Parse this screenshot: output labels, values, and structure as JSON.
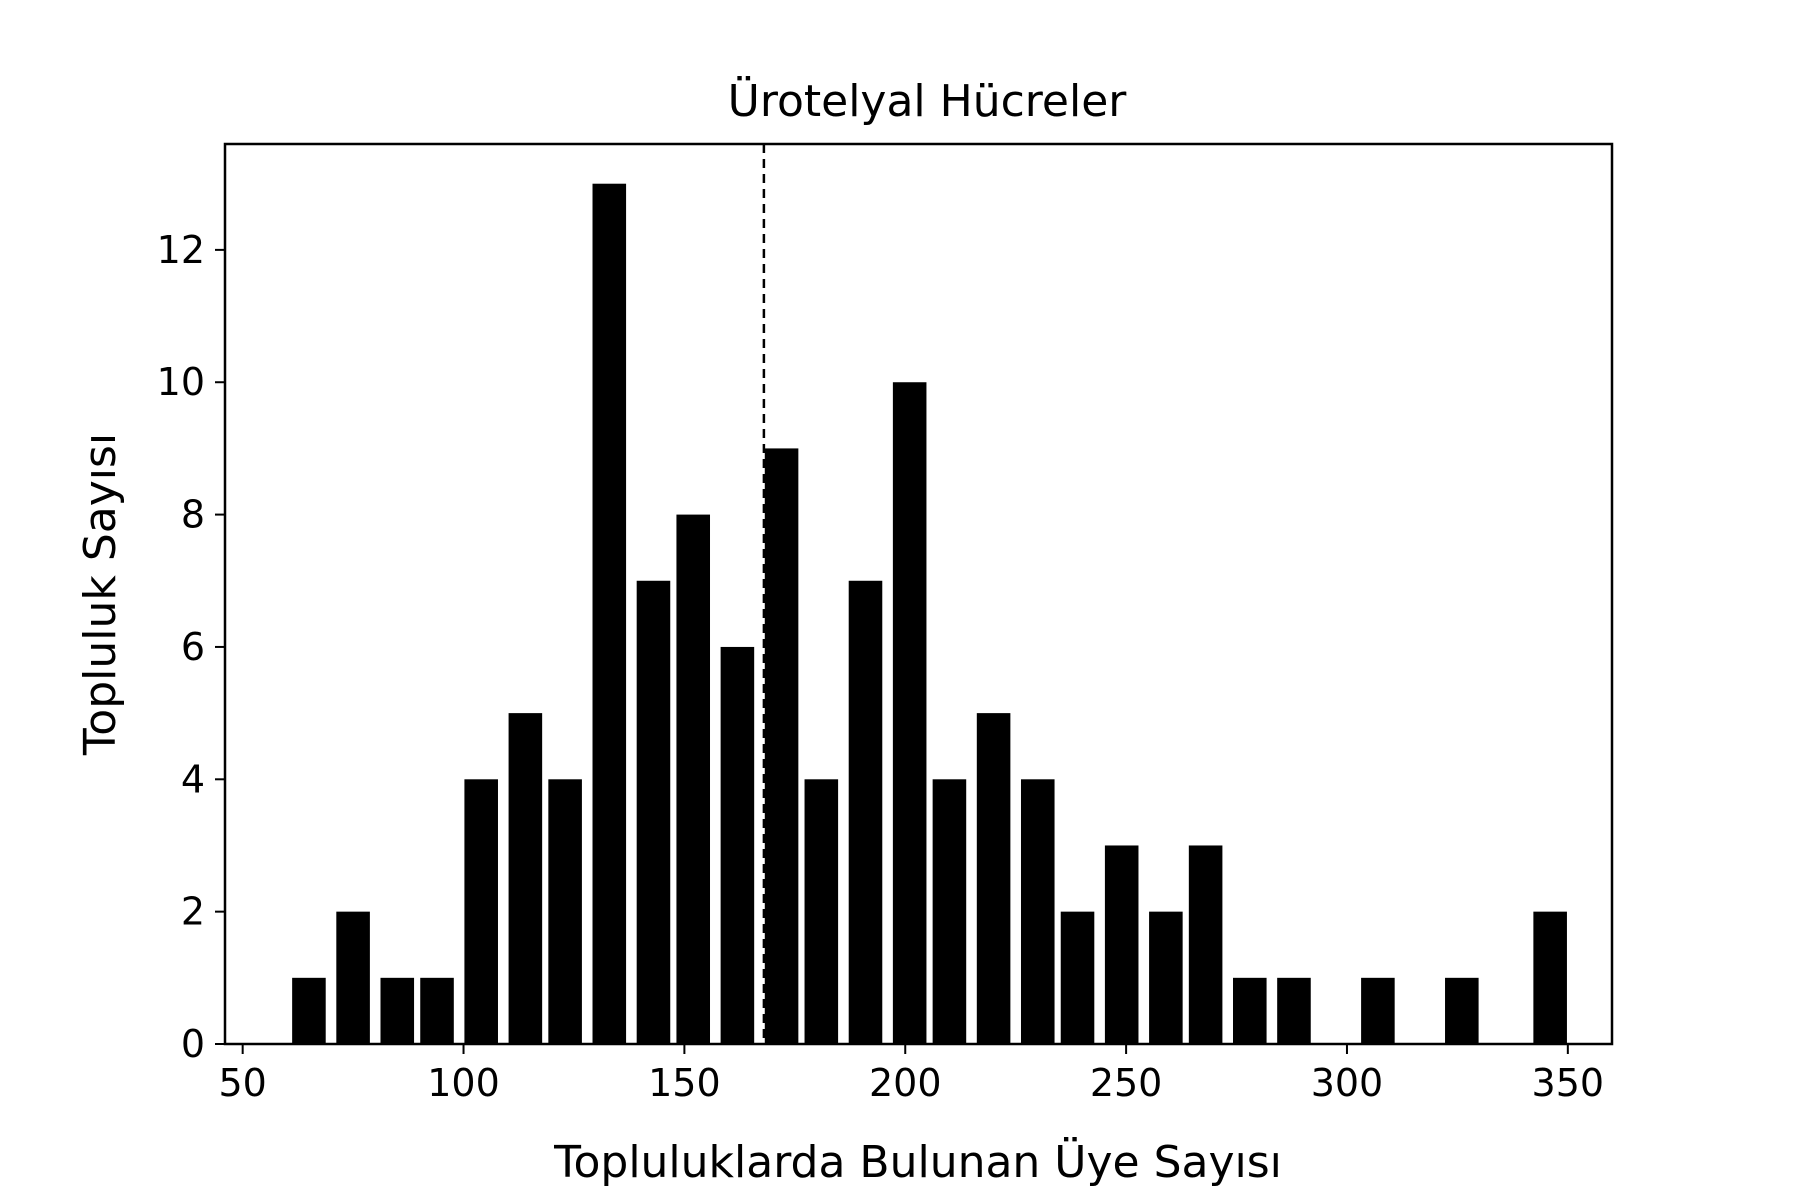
{
  "chart_data": {
    "type": "bar",
    "title": "Ürotelyal Hücreler",
    "xlabel": "Topluluklarda Bulunan Üye Sayısı",
    "ylabel": "Topluluk Sayısı",
    "x": [
      65,
      75,
      85,
      94,
      104,
      114,
      123,
      133,
      143,
      152,
      162,
      172,
      181,
      191,
      201,
      210,
      220,
      230,
      239,
      249,
      259,
      268,
      278,
      288,
      307,
      326,
      346
    ],
    "values": [
      1,
      2,
      1,
      1,
      4,
      5,
      4,
      13,
      7,
      8,
      6,
      9,
      4,
      7,
      10,
      4,
      5,
      4,
      2,
      3,
      2,
      3,
      1,
      1,
      1,
      1,
      2
    ],
    "bin_width": 7.6,
    "xlim": [
      46,
      360
    ],
    "ylim": [
      0,
      13.6
    ],
    "xticks": [
      50,
      100,
      150,
      200,
      250,
      300,
      350
    ],
    "yticks": [
      0,
      2,
      4,
      6,
      8,
      10,
      12
    ],
    "reference_line": {
      "x": 168,
      "style": "dashed"
    },
    "bar_color": "#000000",
    "grid": false
  }
}
